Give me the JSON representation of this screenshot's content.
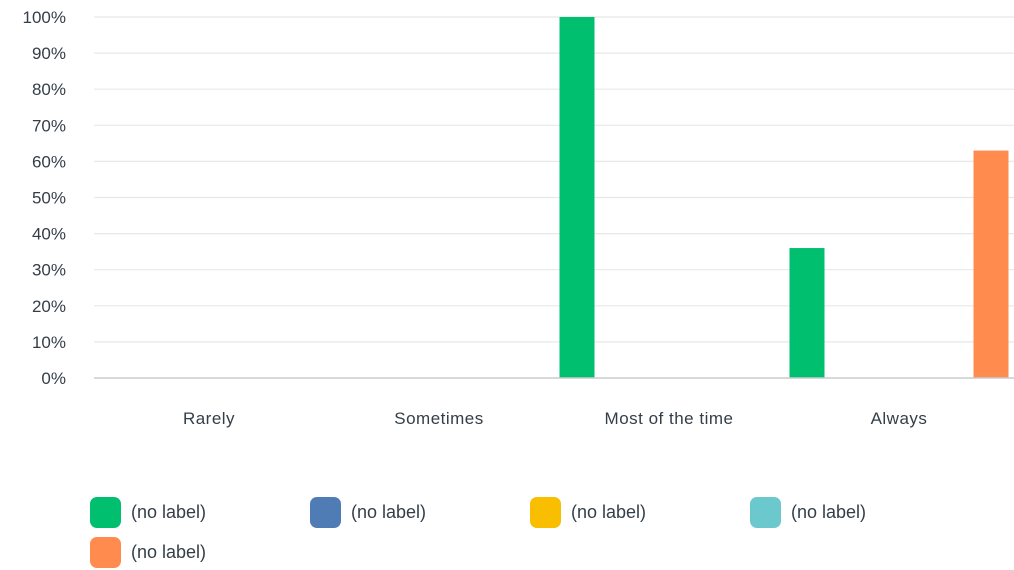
{
  "chart_data": {
    "type": "bar",
    "categories": [
      "Rarely",
      "Sometimes",
      "Most of the time",
      "Always"
    ],
    "series": [
      {
        "label": "(no label)",
        "color": "#00bf6f",
        "values": [
          0,
          0,
          100,
          36
        ]
      },
      {
        "label": "(no label)",
        "color": "#507cb6",
        "values": [
          0,
          0,
          0,
          0
        ]
      },
      {
        "label": "(no label)",
        "color": "#f9be00",
        "values": [
          0,
          0,
          0,
          0
        ]
      },
      {
        "label": "(no label)",
        "color": "#6bc8cd",
        "values": [
          0,
          0,
          0,
          0
        ]
      },
      {
        "label": "(no label)",
        "color": "#ff8b4f",
        "values": [
          0,
          0,
          0,
          63
        ]
      }
    ],
    "ylim": [
      0,
      100
    ],
    "yticks": [
      "0%",
      "10%",
      "20%",
      "30%",
      "40%",
      "50%",
      "60%",
      "70%",
      "80%",
      "90%",
      "100%"
    ],
    "grid": true,
    "legend_position": "bottom"
  }
}
